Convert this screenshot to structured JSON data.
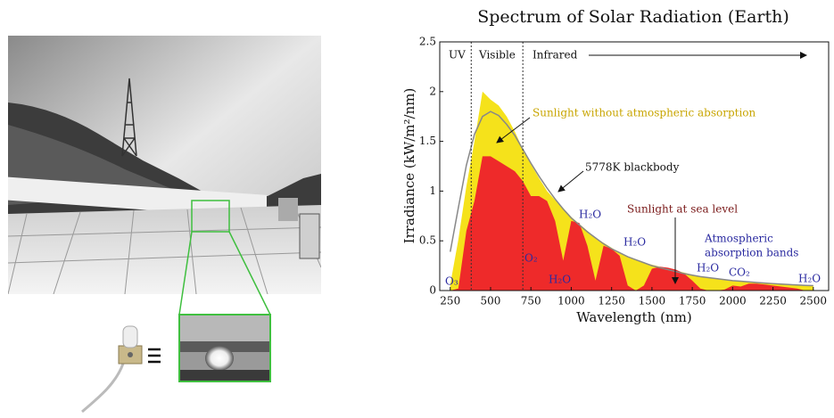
{
  "chart_data": {
    "type": "area",
    "title": "Spectrum of Solar Radiation (Earth)",
    "x_label": "Wavelength (nm)",
    "y_label": "Irradiance (kW/m²/nm)",
    "xlim": [
      185,
      2595
    ],
    "ylim": [
      0,
      2.5
    ],
    "xticks": [
      250,
      500,
      750,
      1000,
      1250,
      1500,
      1750,
      2000,
      2250,
      2500
    ],
    "yticks": [
      0,
      0.5,
      1,
      1.5,
      2,
      2.5
    ],
    "region_bounds": [
      380,
      700
    ],
    "region_names": [
      "UV",
      "Visible",
      "Infrared"
    ],
    "absorption_label": [
      "Atmospheric",
      "absorption bands"
    ],
    "absorption_labels": [
      "O₃",
      "O₂",
      "H₂O",
      "H₂O",
      "H₂O",
      "H₂O",
      "CO₂",
      "H₂O"
    ],
    "x": [
      250,
      300,
      350,
      400,
      450,
      500,
      550,
      600,
      650,
      700,
      750,
      800,
      850,
      900,
      950,
      1000,
      1050,
      1100,
      1150,
      1200,
      1250,
      1300,
      1350,
      1400,
      1450,
      1500,
      1550,
      1600,
      1650,
      1700,
      1750,
      1800,
      1850,
      1900,
      1950,
      2000,
      2050,
      2100,
      2150,
      2200,
      2250,
      2300,
      2350,
      2400,
      2450,
      2500
    ],
    "series": [
      {
        "name": "Sunlight without atmospheric absorption",
        "kind": "area",
        "color": "#f5e21b",
        "values": [
          0.06,
          0.51,
          1.05,
          1.5,
          2.0,
          1.92,
          1.86,
          1.75,
          1.6,
          1.42,
          1.27,
          1.13,
          1.0,
          0.91,
          0.83,
          0.74,
          0.67,
          0.6,
          0.53,
          0.48,
          0.43,
          0.38,
          0.34,
          0.31,
          0.28,
          0.26,
          0.24,
          0.22,
          0.2,
          0.18,
          0.16,
          0.145,
          0.13,
          0.12,
          0.11,
          0.1,
          0.093,
          0.086,
          0.08,
          0.074,
          0.068,
          0.063,
          0.059,
          0.055,
          0.051,
          0.047
        ]
      },
      {
        "name": "Sunlight at sea level",
        "kind": "area",
        "color": "#ee2a2a",
        "values": [
          0,
          0.02,
          0.6,
          0.9,
          1.35,
          1.35,
          1.3,
          1.25,
          1.2,
          1.1,
          0.95,
          0.95,
          0.9,
          0.7,
          0.3,
          0.7,
          0.68,
          0.45,
          0.1,
          0.45,
          0.42,
          0.35,
          0.05,
          0,
          0.05,
          0.22,
          0.24,
          0.23,
          0.21,
          0.17,
          0.1,
          0.02,
          0,
          0,
          0.01,
          0.05,
          0.04,
          0.07,
          0.07,
          0.06,
          0.05,
          0.04,
          0.03,
          0.02,
          0,
          0
        ]
      },
      {
        "name": "5778K blackbody",
        "kind": "line",
        "color": "#888888",
        "values": [
          0.39,
          0.83,
          1.26,
          1.57,
          1.75,
          1.8,
          1.76,
          1.67,
          1.56,
          1.42,
          1.28,
          1.15,
          1.03,
          0.92,
          0.82,
          0.73,
          0.66,
          0.59,
          0.53,
          0.47,
          0.42,
          0.38,
          0.34,
          0.31,
          0.28,
          0.25,
          0.23,
          0.21,
          0.19,
          0.17,
          0.155,
          0.14,
          0.13,
          0.12,
          0.11,
          0.1,
          0.094,
          0.087,
          0.081,
          0.075,
          0.07,
          0.065,
          0.06,
          0.056,
          0.052,
          0.049
        ]
      }
    ]
  }
}
